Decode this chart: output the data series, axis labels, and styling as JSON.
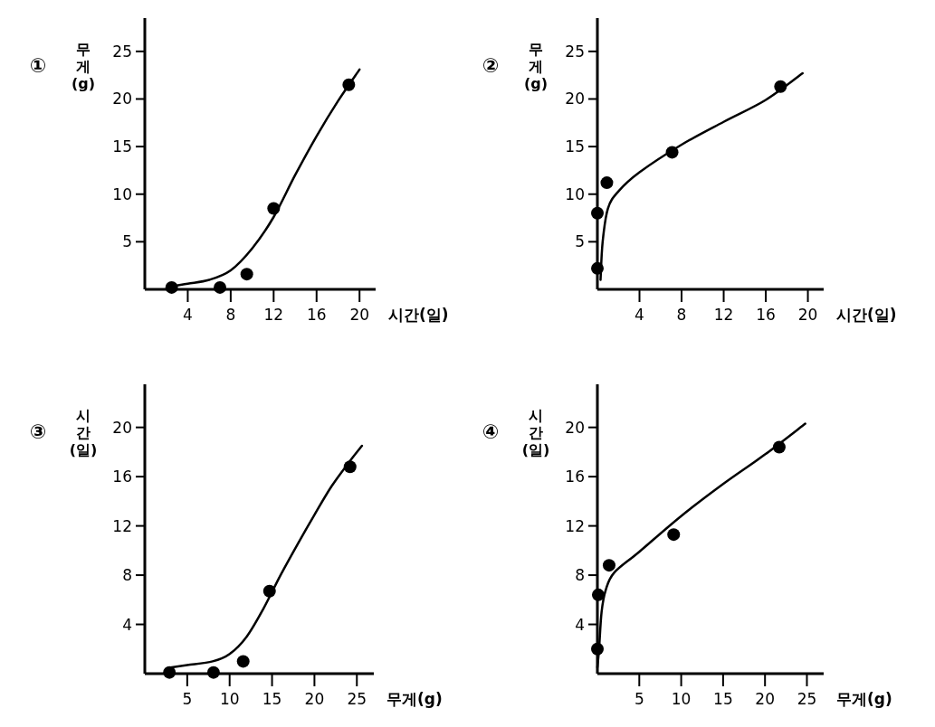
{
  "chart_data": [
    {
      "type": "scatter",
      "title": "①",
      "xlabel": "시간(일)",
      "ylabel": "무게(g)",
      "xlim": [
        0,
        21.5
      ],
      "ylim": [
        0,
        28.5
      ],
      "xticks": [
        4,
        8,
        12,
        16,
        20
      ],
      "yticks": [
        5,
        10,
        15,
        20,
        25
      ],
      "series": [
        {
          "marker": "circle",
          "color": "#000000",
          "x": [
            2.5,
            7,
            9.5,
            12,
            19
          ],
          "values": [
            0.2,
            0.2,
            1.6,
            8.5,
            21.5
          ]
        },
        {
          "type": "line",
          "marker": "none",
          "color": "#000000",
          "x": [
            2.5,
            4,
            6,
            8,
            10,
            12,
            14,
            16,
            18,
            20
          ],
          "values": [
            0.3,
            0.6,
            1.0,
            2.0,
            4.3,
            7.6,
            12,
            16.1,
            19.8,
            23.1
          ]
        }
      ]
    },
    {
      "type": "scatter",
      "title": "②",
      "xlabel": "시간(일)",
      "ylabel": "무게(g)",
      "xlim": [
        0,
        21.5
      ],
      "ylim": [
        0,
        28.5
      ],
      "xticks": [
        4,
        8,
        12,
        16,
        20
      ],
      "yticks": [
        5,
        10,
        15,
        20,
        25
      ],
      "series": [
        {
          "marker": "circle",
          "color": "#000000",
          "x": [
            0,
            0,
            0.9,
            7.1,
            17.4
          ],
          "values": [
            2.2,
            8,
            11.2,
            14.4,
            21.3
          ]
        },
        {
          "type": "line",
          "marker": "none",
          "color": "#000000",
          "x": [
            0.3,
            0.5,
            1,
            2,
            4,
            8,
            12,
            16,
            19.5
          ],
          "values": [
            1,
            5,
            8.5,
            10.3,
            12.3,
            15.2,
            17.6,
            19.9,
            22.7
          ]
        }
      ]
    },
    {
      "type": "scatter",
      "title": "③",
      "xlabel": "무게(g)",
      "ylabel": "시간(일)",
      "xlim": [
        0,
        27
      ],
      "ylim": [
        0,
        23.5
      ],
      "xticks": [
        5,
        10,
        15,
        20,
        25
      ],
      "yticks": [
        4,
        8,
        12,
        16,
        20
      ],
      "series": [
        {
          "marker": "circle",
          "color": "#000000",
          "x": [
            2.9,
            8.1,
            11.6,
            14.7,
            24.2
          ],
          "values": [
            0.1,
            0.1,
            1.0,
            6.7,
            16.8
          ]
        },
        {
          "type": "line",
          "marker": "none",
          "color": "#000000",
          "x": [
            3,
            5,
            8,
            10,
            12,
            14,
            16,
            18,
            20,
            22,
            24,
            25.6
          ],
          "values": [
            0.5,
            0.7,
            1.0,
            1.6,
            3.0,
            5.3,
            8.0,
            10.5,
            12.9,
            15.2,
            17.1,
            18.5
          ]
        }
      ]
    },
    {
      "type": "scatter",
      "title": "④",
      "xlabel": "무게(g)",
      "ylabel": "시간(일)",
      "xlim": [
        0,
        27
      ],
      "ylim": [
        0,
        23.5
      ],
      "xticks": [
        5,
        10,
        15,
        20,
        25
      ],
      "yticks": [
        4,
        8,
        12,
        16,
        20
      ],
      "series": [
        {
          "marker": "circle",
          "color": "#000000",
          "x": [
            0,
            0.1,
            1.4,
            9.1,
            21.7
          ],
          "values": [
            2.0,
            6.4,
            8.8,
            11.3,
            18.4
          ]
        },
        {
          "type": "line",
          "marker": "none",
          "color": "#000000",
          "x": [
            0,
            0.2,
            0.5,
            1,
            2,
            5,
            10,
            15,
            20,
            24.8
          ],
          "values": [
            0.5,
            2,
            5,
            6.8,
            8.2,
            9.9,
            12.8,
            15.4,
            17.8,
            20.3
          ]
        }
      ]
    }
  ]
}
